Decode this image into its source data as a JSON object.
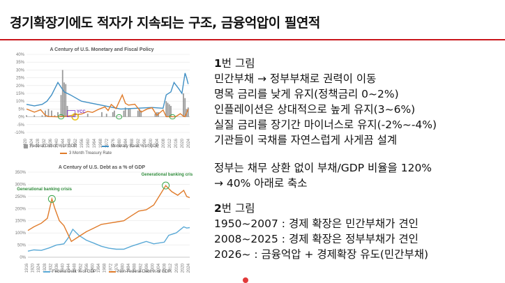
{
  "slide": {
    "title": "경기확장기에도 적자가 지속되는 구조, 금융억압이 필연적",
    "accent_color": "#c9151b"
  },
  "text": {
    "section1": {
      "number": "1",
      "label": "번 그림"
    },
    "lines1": [
      "민간부채 → 정부부채로 권력이 이동",
      "명목 금리를 낮게 유지(정책금리 0~2%)",
      "인플레이션은 상대적으로 높게 유지(3~6%)",
      "실질 금리를 장기간 마이너스로 유지(-2%~-4%)",
      "기관들이 국채를 자연스럽게 사게끔 설계"
    ],
    "lines_mid": [
      "정부는 채무 상환 없이 부채/GDP 비율을 120%",
      "→ 40% 아래로 축소"
    ],
    "section2": {
      "number": "2",
      "label": "번 그림"
    },
    "lines2": [
      "1950~2007 : 경제 확장은 민간부채가 견인",
      "2008~2025 : 경제 확장은 정부부채가 견인",
      "2026~ : 금융억압 + 경제확장 유도(민간부채)"
    ]
  },
  "chart_data": [
    {
      "type": "line",
      "title": "A Century of U.S. Monetary and Fiscal Policy",
      "y_ticks": [
        "40%",
        "35%",
        "30%",
        "25%",
        "20%",
        "15%",
        "10%",
        "5%",
        "0%",
        "-5%",
        "-10%"
      ],
      "ylim": [
        -10,
        40
      ],
      "x_range": [
        1920,
        2024
      ],
      "annotation": "YCC",
      "legend": [
        "Federal Deficit % of GDP",
        "Monetary Base % of GDP",
        "3 Month Treasury Rate"
      ],
      "series": [
        {
          "name": "Federal Deficit % of GDP",
          "style": "bar",
          "color": "#9a9a9a",
          "points": [
            [
              1920,
              1
            ],
            [
              1925,
              1
            ],
            [
              1930,
              1
            ],
            [
              1932,
              4
            ],
            [
              1934,
              5
            ],
            [
              1936,
              4
            ],
            [
              1938,
              1
            ],
            [
              1940,
              3
            ],
            [
              1942,
              14
            ],
            [
              1943,
              30
            ],
            [
              1944,
              22
            ],
            [
              1945,
              21
            ],
            [
              1946,
              7
            ],
            [
              1950,
              1
            ],
            [
              1953,
              2
            ],
            [
              1959,
              2
            ],
            [
              1968,
              3
            ],
            [
              1971,
              2
            ],
            [
              1975,
              3
            ],
            [
              1976,
              4
            ],
            [
              1982,
              4
            ],
            [
              1983,
              6
            ],
            [
              1985,
              5
            ],
            [
              1986,
              5
            ],
            [
              1991,
              4
            ],
            [
              1992,
              5
            ],
            [
              1993,
              4
            ],
            [
              2002,
              2
            ],
            [
              2003,
              3
            ],
            [
              2004,
              3
            ],
            [
              2009,
              10
            ],
            [
              2010,
              9
            ],
            [
              2011,
              8
            ],
            [
              2012,
              7
            ],
            [
              2020,
              15
            ],
            [
              2021,
              12
            ],
            [
              2022,
              5
            ],
            [
              2023,
              6
            ]
          ]
        },
        {
          "name": "Monetary Base % of GDP",
          "style": "line",
          "color": "#3f8fc4",
          "points": [
            [
              1920,
              8
            ],
            [
              1925,
              7
            ],
            [
              1930,
              8
            ],
            [
              1933,
              10
            ],
            [
              1936,
              14
            ],
            [
              1940,
              22
            ],
            [
              1944,
              16
            ],
            [
              1948,
              14
            ],
            [
              1955,
              10
            ],
            [
              1965,
              8
            ],
            [
              1975,
              6
            ],
            [
              1980,
              5
            ],
            [
              1990,
              5.5
            ],
            [
              2000,
              6
            ],
            [
              2007,
              5.5
            ],
            [
              2009,
              14
            ],
            [
              2012,
              16
            ],
            [
              2014,
              22
            ],
            [
              2017,
              18
            ],
            [
              2019,
              15
            ],
            [
              2021,
              28
            ],
            [
              2022,
              25
            ],
            [
              2023,
              21
            ]
          ]
        },
        {
          "name": "3 Month Treasury Rate",
          "style": "line",
          "color": "#e07b2a",
          "points": [
            [
              1920,
              5
            ],
            [
              1925,
              3
            ],
            [
              1929,
              4.5
            ],
            [
              1932,
              1
            ],
            [
              1934,
              0.2
            ],
            [
              1940,
              0
            ],
            [
              1946,
              0.4
            ],
            [
              1950,
              1.2
            ],
            [
              1955,
              1.8
            ],
            [
              1959,
              3.5
            ],
            [
              1962,
              2.8
            ],
            [
              1966,
              4.8
            ],
            [
              1970,
              6.4
            ],
            [
              1972,
              4
            ],
            [
              1974,
              7.9
            ],
            [
              1977,
              5.3
            ],
            [
              1981,
              14
            ],
            [
              1983,
              8.6
            ],
            [
              1985,
              7.5
            ],
            [
              1989,
              8.1
            ],
            [
              1993,
              3
            ],
            [
              1997,
              5.1
            ],
            [
              2000,
              5.8
            ],
            [
              2003,
              1
            ],
            [
              2007,
              4.4
            ],
            [
              2009,
              0.1
            ],
            [
              2015,
              0.1
            ],
            [
              2018,
              2
            ],
            [
              2020,
              0.4
            ],
            [
              2021,
              0.1
            ],
            [
              2023,
              5
            ]
          ]
        }
      ]
    },
    {
      "type": "line",
      "title": "A Century of U.S. Debt as a % of GDP",
      "y_ticks": [
        "350%",
        "300%",
        "250%",
        "200%",
        "150%",
        "100%",
        "50%",
        "0%"
      ],
      "ylim": [
        0,
        350
      ],
      "x_range": [
        1916,
        2024
      ],
      "annotations": [
        "Generational banking crisis",
        "Generational banking crisis"
      ],
      "legend": [
        "Federal Debt % of GDP",
        "Non-Federal Debt % of GDP"
      ],
      "series": [
        {
          "name": "Federal Debt % of GDP",
          "color": "#5aa9d6",
          "points": [
            [
              1916,
              25
            ],
            [
              1920,
              30
            ],
            [
              1925,
              28
            ],
            [
              1930,
              38
            ],
            [
              1935,
              50
            ],
            [
              1940,
              55
            ],
            [
              1943,
              80
            ],
            [
              1946,
              115
            ],
            [
              1950,
              90
            ],
            [
              1955,
              70
            ],
            [
              1960,
              58
            ],
            [
              1965,
              45
            ],
            [
              1970,
              37
            ],
            [
              1975,
              33
            ],
            [
              1980,
              33
            ],
            [
              1985,
              45
            ],
            [
              1990,
              55
            ],
            [
              1995,
              65
            ],
            [
              2000,
              55
            ],
            [
              2007,
              62
            ],
            [
              2010,
              90
            ],
            [
              2015,
              100
            ],
            [
              2020,
              125
            ],
            [
              2022,
              120
            ],
            [
              2024,
              122
            ]
          ]
        },
        {
          "name": "Non-Federal Debt % of GDP",
          "color": "#e07b2a",
          "points": [
            [
              1916,
              110
            ],
            [
              1920,
              125
            ],
            [
              1925,
              140
            ],
            [
              1929,
              160
            ],
            [
              1932,
              240
            ],
            [
              1934,
              200
            ],
            [
              1937,
              150
            ],
            [
              1940,
              130
            ],
            [
              1945,
              65
            ],
            [
              1950,
              85
            ],
            [
              1955,
              105
            ],
            [
              1960,
              120
            ],
            [
              1965,
              135
            ],
            [
              1970,
              140
            ],
            [
              1975,
              145
            ],
            [
              1980,
              150
            ],
            [
              1985,
              170
            ],
            [
              1990,
              190
            ],
            [
              1995,
              195
            ],
            [
              2000,
              215
            ],
            [
              2005,
              265
            ],
            [
              2008,
              295
            ],
            [
              2012,
              270
            ],
            [
              2016,
              255
            ],
            [
              2020,
              275
            ],
            [
              2022,
              250
            ],
            [
              2024,
              245
            ]
          ]
        }
      ]
    }
  ]
}
